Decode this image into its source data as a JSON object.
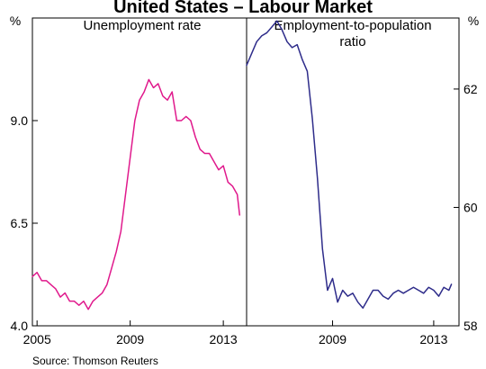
{
  "chart_data": {
    "type": "line",
    "title": "United States – Labour Market",
    "source": "Source: Thomson Reuters",
    "left_axis": {
      "unit": "%",
      "ylim": [
        4.0,
        11.5
      ],
      "ticks": [
        4.0,
        6.5,
        9.0
      ],
      "tick_labels": [
        "4.0",
        "6.5",
        "9.0"
      ]
    },
    "right_axis": {
      "unit": "%",
      "ylim": [
        58,
        63.2
      ],
      "ticks": [
        58,
        60,
        62
      ],
      "tick_labels": [
        "58",
        "60",
        "62"
      ]
    },
    "x_tick_labels_left": [
      "2005",
      "2009",
      "2013"
    ],
    "x_tick_labels_right": [
      "2009",
      "2013"
    ],
    "grid": false,
    "panels": [
      {
        "name": "Unemployment rate",
        "axis": "left",
        "xlim": [
          2004.8,
          2014.0
        ],
        "color": "#e0198c",
        "x_ticks": [
          2005,
          2009,
          2013
        ],
        "series": [
          {
            "name": "Unemployment rate",
            "x": [
              2004.8,
              2005.0,
              2005.2,
              2005.4,
              2005.6,
              2005.8,
              2006.0,
              2006.2,
              2006.4,
              2006.6,
              2006.8,
              2007.0,
              2007.2,
              2007.4,
              2007.6,
              2007.8,
              2008.0,
              2008.2,
              2008.4,
              2008.6,
              2008.8,
              2009.0,
              2009.2,
              2009.4,
              2009.6,
              2009.8,
              2010.0,
              2010.2,
              2010.4,
              2010.6,
              2010.8,
              2011.0,
              2011.2,
              2011.4,
              2011.6,
              2011.8,
              2012.0,
              2012.2,
              2012.4,
              2012.6,
              2012.8,
              2013.0,
              2013.2,
              2013.4,
              2013.6,
              2013.7
            ],
            "y": [
              5.2,
              5.3,
              5.1,
              5.1,
              5.0,
              4.9,
              4.7,
              4.8,
              4.6,
              4.6,
              4.5,
              4.6,
              4.4,
              4.6,
              4.7,
              4.8,
              5.0,
              5.4,
              5.8,
              6.3,
              7.2,
              8.1,
              9.0,
              9.5,
              9.7,
              10.0,
              9.8,
              9.9,
              9.6,
              9.5,
              9.7,
              9.0,
              9.0,
              9.1,
              9.0,
              8.6,
              8.3,
              8.2,
              8.2,
              8.0,
              7.8,
              7.9,
              7.5,
              7.4,
              7.2,
              6.7
            ]
          }
        ]
      },
      {
        "name": "Employment-to-population ratio",
        "title_lines": [
          "Employment-to-population",
          "ratio"
        ],
        "axis": "right",
        "xlim": [
          2005.6,
          2014.0
        ],
        "color": "#2e2c8a",
        "x_ticks": [
          2009,
          2013
        ],
        "series": [
          {
            "name": "Employment-to-population ratio",
            "x": [
              2005.6,
              2005.8,
              2006.0,
              2006.2,
              2006.4,
              2006.6,
              2006.8,
              2007.0,
              2007.2,
              2007.4,
              2007.6,
              2007.8,
              2008.0,
              2008.2,
              2008.4,
              2008.6,
              2008.8,
              2009.0,
              2009.2,
              2009.4,
              2009.6,
              2009.8,
              2010.0,
              2010.2,
              2010.4,
              2010.6,
              2010.8,
              2011.0,
              2011.2,
              2011.4,
              2011.6,
              2011.8,
              2012.0,
              2012.2,
              2012.4,
              2012.6,
              2012.8,
              2013.0,
              2013.2,
              2013.4,
              2013.6,
              2013.7
            ],
            "y": [
              62.4,
              62.6,
              62.8,
              62.9,
              62.95,
              63.05,
              63.15,
              63.0,
              62.8,
              62.7,
              62.75,
              62.5,
              62.3,
              61.5,
              60.5,
              59.3,
              58.6,
              58.8,
              58.4,
              58.6,
              58.5,
              58.55,
              58.4,
              58.3,
              58.45,
              58.6,
              58.6,
              58.5,
              58.45,
              58.55,
              58.6,
              58.55,
              58.6,
              58.65,
              58.6,
              58.55,
              58.65,
              58.6,
              58.5,
              58.65,
              58.6,
              58.7
            ]
          }
        ]
      }
    ]
  }
}
